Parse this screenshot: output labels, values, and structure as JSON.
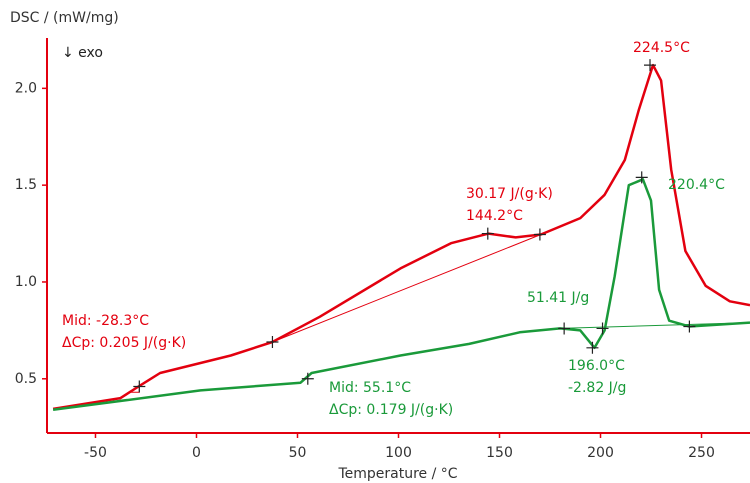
{
  "chart_data": {
    "type": "line",
    "y_label": "DSC / (mW/mg)",
    "x_label": "Temperature / °C",
    "xlim": [
      -74,
      274
    ],
    "xticks": [
      -50,
      0,
      50,
      100,
      150,
      200,
      250
    ],
    "ylim": [
      0.22,
      2.26
    ],
    "yticks": [
      0.5,
      {
        "value": 1,
        "label": "1.0"
      },
      1.5,
      {
        "value": 2,
        "label": "2.0"
      }
    ],
    "axis_color": "#e3000f",
    "series": [
      {
        "color": "#e3000f",
        "x": [
          -71,
          -37.6,
          -28.7,
          -18,
          17,
          37.6,
          61,
          101,
          126,
          144.6,
          158,
          170.5,
          190,
          202,
          212,
          219,
          226,
          230,
          235,
          242,
          252,
          264,
          274
        ],
        "values": [
          0.345,
          0.4,
          0.46,
          0.53,
          0.62,
          0.69,
          0.82,
          1.07,
          1.2,
          1.25,
          1.23,
          1.245,
          1.33,
          1.45,
          1.63,
          1.89,
          2.12,
          2.04,
          1.58,
          1.16,
          0.98,
          0.9,
          0.88
        ],
        "markers_x": [
          -28.3,
          37.6,
          144.2,
          170,
          224.5
        ],
        "markers_y": [
          0.46,
          0.69,
          1.25,
          1.245,
          2.12
        ]
      },
      {
        "color": "#1a9a3a",
        "x": [
          -71,
          2,
          51.5,
          57,
          101,
          135,
          160,
          180,
          190,
          197,
          202,
          207,
          214,
          221,
          225,
          229,
          234,
          244,
          274
        ],
        "values": [
          0.34,
          0.44,
          0.48,
          0.53,
          0.62,
          0.68,
          0.74,
          0.76,
          0.75,
          0.66,
          0.75,
          1.03,
          1.5,
          1.53,
          1.42,
          0.96,
          0.8,
          0.77,
          0.79
        ],
        "markers_x": [
          55.1,
          182,
          196,
          201,
          220.4,
          244
        ],
        "markers_y": [
          0.5,
          0.76,
          0.66,
          0.76,
          1.54,
          0.77
        ]
      }
    ],
    "baselines": [
      {
        "color": "#e3000f",
        "x": [
          37.6,
          170.5
        ],
        "values": [
          0.69,
          1.245
        ]
      },
      {
        "color": "#e3000f",
        "x": [
          -33,
          -28.3,
          -28.3
        ],
        "values": [
          0.43,
          0.43,
          0.46
        ]
      },
      {
        "color": "#1a9a3a",
        "x": [
          180,
          274
        ],
        "values": [
          0.76,
          0.79
        ]
      }
    ],
    "annotations": [
      {
        "text": "↓ exo",
        "color": "#222222"
      },
      {
        "text": "224.5°C",
        "color": "#e3000f"
      },
      {
        "text": "30.17 J/(g·K)",
        "color": "#e3000f"
      },
      {
        "text": "144.2°C",
        "color": "#e3000f"
      },
      {
        "text": "Mid: -28.3°C",
        "color": "#e3000f"
      },
      {
        "text": "ΔCp: 0.205 J/(g·K)",
        "color": "#e3000f"
      },
      {
        "text": "220.4°C",
        "color": "#1a9a3a"
      },
      {
        "text": "51.41 J/g",
        "color": "#1a9a3a"
      },
      {
        "text": "196.0°C",
        "color": "#1a9a3a"
      },
      {
        "text": "-2.82 J/g",
        "color": "#1a9a3a"
      },
      {
        "text": "Mid: 55.1°C",
        "color": "#1a9a3a"
      },
      {
        "text": "ΔCp: 0.179 J/(g·K)",
        "color": "#1a9a3a"
      }
    ]
  }
}
